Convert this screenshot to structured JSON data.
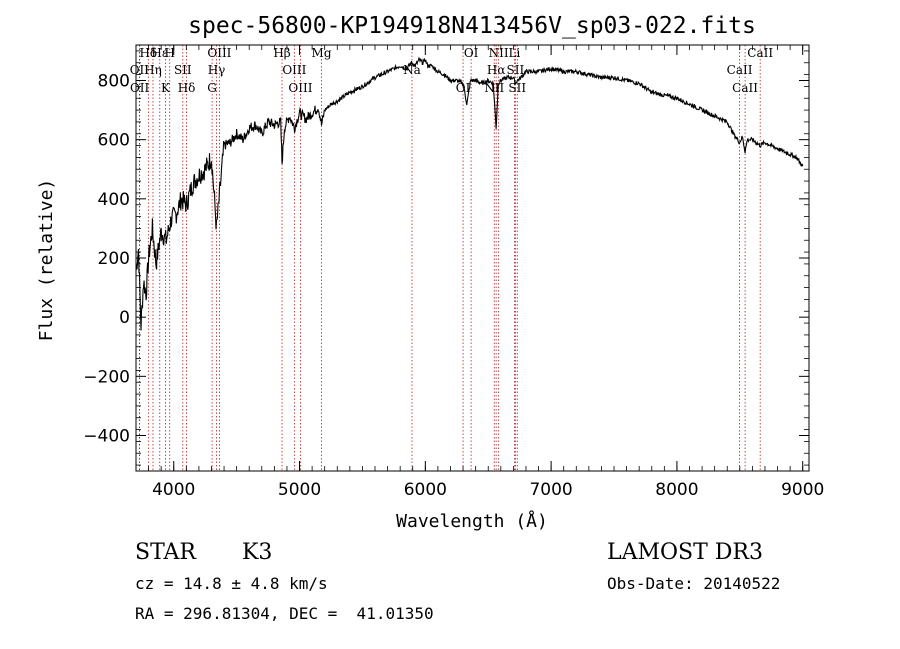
{
  "chart_data": {
    "type": "line",
    "title": "spec-56800-KP194918N413456V_sp03-022.fits",
    "xlabel": "Wavelength (Å)",
    "ylabel": "Flux (relative)",
    "xlim": [
      3700,
      9050
    ],
    "ylim": [
      -520,
      920
    ],
    "xticks": [
      4000,
      5000,
      6000,
      7000,
      8000,
      9000
    ],
    "yticks": [
      -400,
      -200,
      0,
      200,
      400,
      600,
      800
    ],
    "series": [
      {
        "name": "flux",
        "x": [
          3700,
          3720,
          3740,
          3760,
          3780,
          3800,
          3830,
          3860,
          3900,
          3940,
          3980,
          4020,
          4060,
          4100,
          4150,
          4200,
          4250,
          4300,
          4340,
          4400,
          4450,
          4500,
          4550,
          4600,
          4650,
          4700,
          4750,
          4800,
          4850,
          4861,
          4880,
          4920,
          4960,
          5000,
          5050,
          5100,
          5150,
          5175,
          5200,
          5250,
          5300,
          5400,
          5500,
          5600,
          5700,
          5800,
          5850,
          5890,
          5920,
          5950,
          5980,
          6000,
          6020,
          6050,
          6100,
          6150,
          6200,
          6250,
          6300,
          6330,
          6360,
          6400,
          6450,
          6500,
          6540,
          6563,
          6580,
          6600,
          6650,
          6700,
          6716,
          6731,
          6760,
          6800,
          6900,
          7000,
          7100,
          7200,
          7300,
          7400,
          7500,
          7600,
          7700,
          7800,
          7900,
          8000,
          8100,
          8200,
          8300,
          8400,
          8450,
          8498,
          8520,
          8542,
          8560,
          8600,
          8662,
          8700,
          8750,
          8800,
          8850,
          8900,
          8950,
          9000
        ],
        "y": [
          160,
          230,
          -30,
          120,
          80,
          200,
          300,
          180,
          290,
          260,
          330,
          350,
          400,
          380,
          450,
          480,
          500,
          540,
          300,
          580,
          590,
          620,
          600,
          640,
          650,
          620,
          660,
          650,
          660,
          520,
          640,
          680,
          640,
          690,
          670,
          690,
          710,
          650,
          700,
          720,
          730,
          760,
          780,
          810,
          830,
          850,
          840,
          860,
          850,
          870,
          860,
          870,
          850,
          850,
          830,
          820,
          800,
          800,
          790,
          720,
          800,
          800,
          790,
          800,
          790,
          640,
          790,
          800,
          810,
          810,
          790,
          800,
          810,
          830,
          830,
          840,
          830,
          830,
          820,
          810,
          810,
          800,
          790,
          760,
          750,
          740,
          720,
          700,
          680,
          660,
          620,
          590,
          610,
          560,
          600,
          600,
          580,
          590,
          580,
          570,
          560,
          550,
          540,
          510
        ]
      }
    ],
    "lines": [
      {
        "label": "Hδ",
        "x": 3798
      },
      {
        "label": "OII",
        "x": 3727
      },
      {
        "label": "OII",
        "x": 3729
      },
      {
        "label": "Hε",
        "x": 3889
      },
      {
        "label": "Hη",
        "x": 3835
      },
      {
        "label": "K",
        "x": 3934
      },
      {
        "label": "H",
        "x": 3968
      },
      {
        "label": "SII",
        "x": 4072
      },
      {
        "label": "Hδ",
        "x": 4102
      },
      {
        "label": "OIII",
        "x": 4363
      },
      {
        "label": "Hγ",
        "x": 4340
      },
      {
        "label": "G",
        "x": 4305
      },
      {
        "label": "Hβ",
        "x": 4861
      },
      {
        "label": "OIII",
        "x": 4959
      },
      {
        "label": "OIII",
        "x": 5007
      },
      {
        "label": "Mg",
        "x": 5175
      },
      {
        "label": "Na",
        "x": 5894
      },
      {
        "label": "OI",
        "x": 6300
      },
      {
        "label": "OI",
        "x": 6364
      },
      {
        "label": "Hα",
        "x": 6563
      },
      {
        "label": "NII",
        "x": 6548
      },
      {
        "label": "NII",
        "x": 6583
      },
      {
        "label": "SII",
        "x": 6716
      },
      {
        "label": "SII",
        "x": 6731
      },
      {
        "label": "Li",
        "x": 6708
      },
      {
        "label": "CaII",
        "x": 8498
      },
      {
        "label": "CaII",
        "x": 8542
      },
      {
        "label": "CaII",
        "x": 8662
      }
    ]
  },
  "info": {
    "object_class": "STAR",
    "subclass": "K3",
    "survey": "LAMOST DR3",
    "cz": "cz = 14.8 ± 4.8 km/s",
    "obs_date": "Obs-Date: 20140522",
    "radec": "RA = 296.81304, DEC =  41.01350"
  },
  "colors": {
    "line_color": "#000000",
    "marker_color": "#b22222"
  }
}
